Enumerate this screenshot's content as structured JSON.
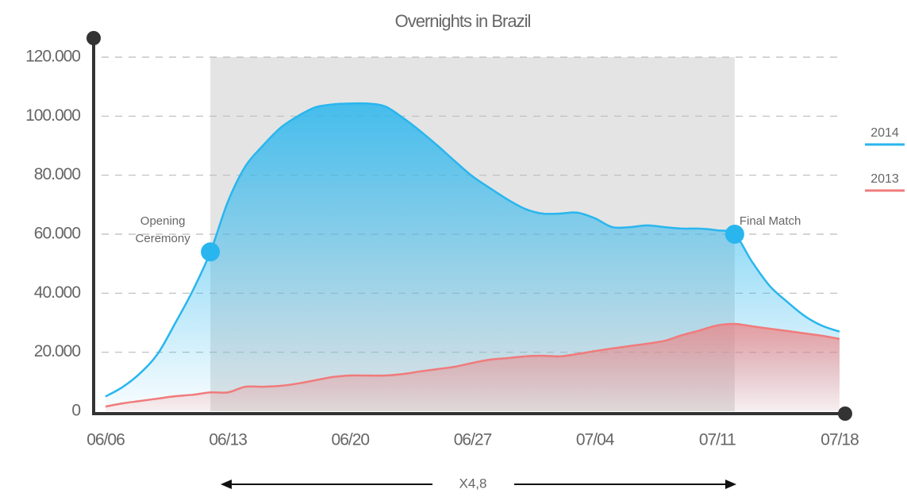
{
  "chart_data": {
    "type": "area",
    "title": "Overnights in Brazil",
    "categories": [
      "06/06",
      null,
      null,
      null,
      null,
      null,
      null,
      "06/13",
      null,
      null,
      null,
      null,
      null,
      null,
      "06/20",
      null,
      null,
      null,
      null,
      null,
      null,
      "06/27",
      null,
      null,
      null,
      null,
      null,
      null,
      "07/04",
      null,
      null,
      null,
      null,
      null,
      null,
      "07/11",
      null,
      null,
      null,
      null,
      null,
      null,
      "07/18"
    ],
    "series": [
      {
        "name": "2014",
        "color": "#29b6ee",
        "values": [
          5000,
          8300,
          13000,
          19600,
          30000,
          41000,
          54000,
          71000,
          83000,
          90000,
          96000,
          100000,
          103000,
          104000,
          104300,
          104300,
          103300,
          99500,
          95000,
          90000,
          84700,
          79600,
          75600,
          71800,
          68600,
          67000,
          67000,
          67300,
          65400,
          62400,
          62400,
          63000,
          62400,
          61900,
          61900,
          61300,
          60000,
          50600,
          42500,
          37100,
          32300,
          29000,
          27000
        ]
      },
      {
        "name": "2013",
        "color": "#f07b7b",
        "values": [
          1600,
          2700,
          3500,
          4300,
          5100,
          5600,
          6400,
          6400,
          8300,
          8300,
          8600,
          9400,
          10500,
          11600,
          12100,
          12100,
          12100,
          12600,
          13500,
          14300,
          15100,
          16400,
          17500,
          18000,
          18600,
          18800,
          18600,
          19400,
          20400,
          21300,
          22100,
          22900,
          23900,
          25800,
          27400,
          29100,
          29600,
          28800,
          28000,
          27200,
          26400,
          25600,
          24500
        ]
      }
    ],
    "ylim": [
      0,
      120000
    ],
    "yticks": [
      0,
      {
        "value": 20000,
        "label": "20.000"
      },
      {
        "value": 40000,
        "label": "40.000"
      },
      {
        "value": 60000,
        "label": "60.000"
      },
      {
        "value": 80000,
        "label": "80.000"
      },
      {
        "value": 100000,
        "label": "100.000"
      },
      {
        "value": 120000,
        "label": "120.000"
      }
    ],
    "grid": true,
    "legend": "right",
    "annotations": [
      {
        "lines": [
          "Opening",
          "Ceremony"
        ],
        "x": 6,
        "series": 0
      },
      {
        "lines": [
          "Final Match"
        ],
        "x": 36,
        "series": 0
      }
    ],
    "span_label": "X4,8"
  }
}
